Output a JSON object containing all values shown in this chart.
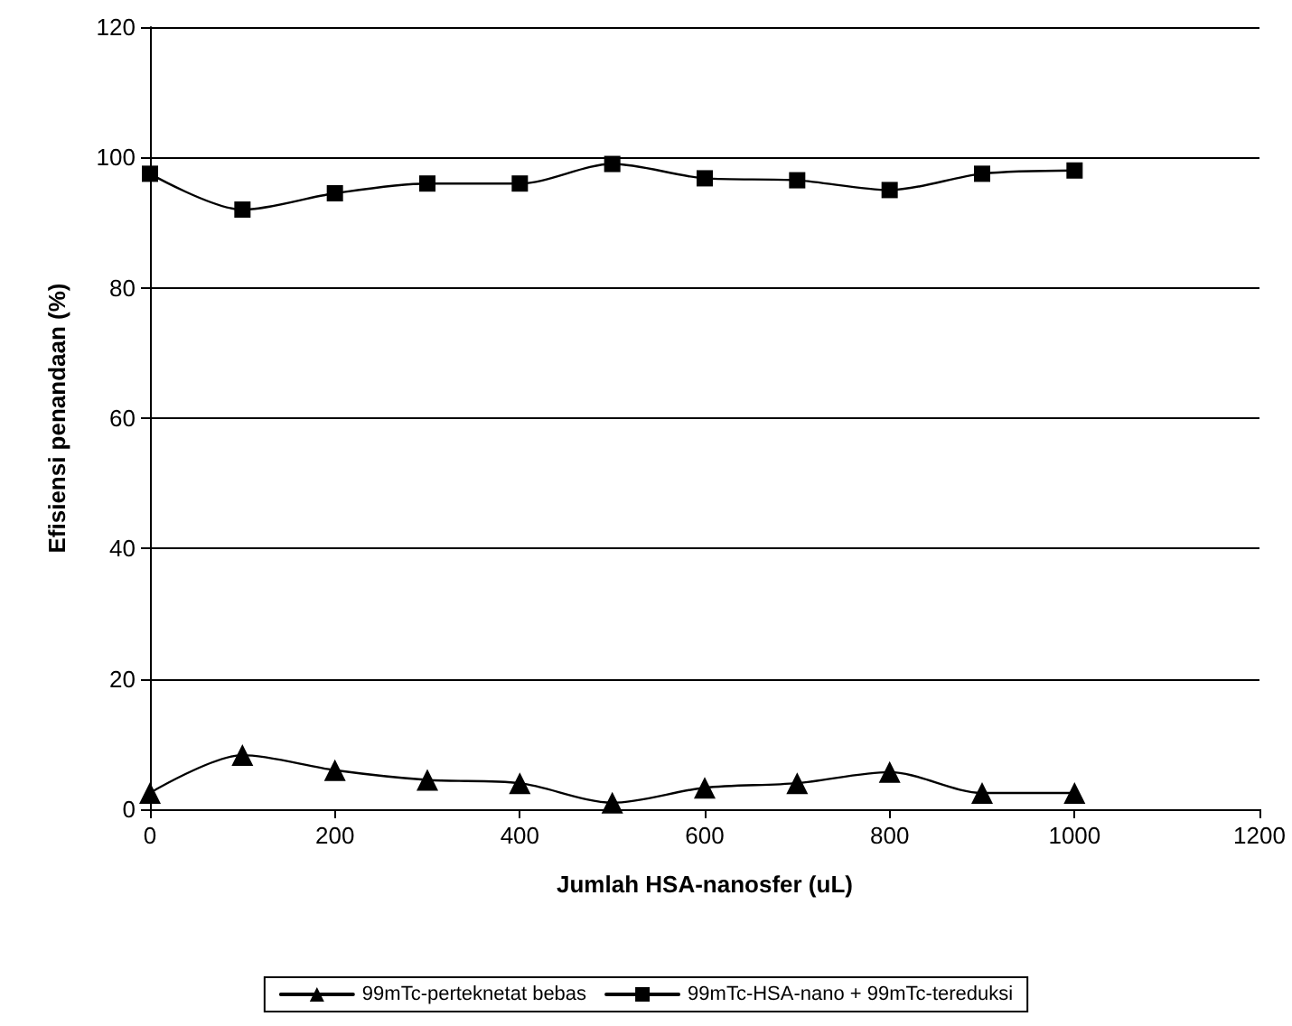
{
  "chart_data": {
    "type": "line",
    "xlabel": "Jumlah HSA-nanosfer (uL)",
    "ylabel": "Efisiensi penandaan (%)",
    "x": [
      0,
      100,
      200,
      300,
      400,
      500,
      600,
      700,
      800,
      900,
      1000
    ],
    "series": [
      {
        "name": "99mTc-perteknetat bebas",
        "color": "#000000",
        "marker": "triangle",
        "values": [
          2.5,
          8.3,
          6,
          4.5,
          4,
          1,
          3.3,
          4,
          5.7,
          2.5,
          2.5
        ]
      },
      {
        "name": "99mTc-HSA-nano + 99mTc-tereduksi",
        "color": "#000000",
        "marker": "square",
        "values": [
          97.5,
          92,
          94.5,
          96,
          96,
          99,
          96.8,
          96.5,
          95,
          97.5,
          98
        ]
      }
    ],
    "xlim": [
      0,
      1200
    ],
    "xticks": [
      0,
      200,
      400,
      600,
      800,
      1000,
      1200
    ],
    "ylim": [
      0,
      120
    ],
    "yticks": [
      0,
      20,
      40,
      60,
      80,
      100,
      120
    ],
    "grid": "y",
    "legend": "bottom",
    "line_style": "solid"
  }
}
